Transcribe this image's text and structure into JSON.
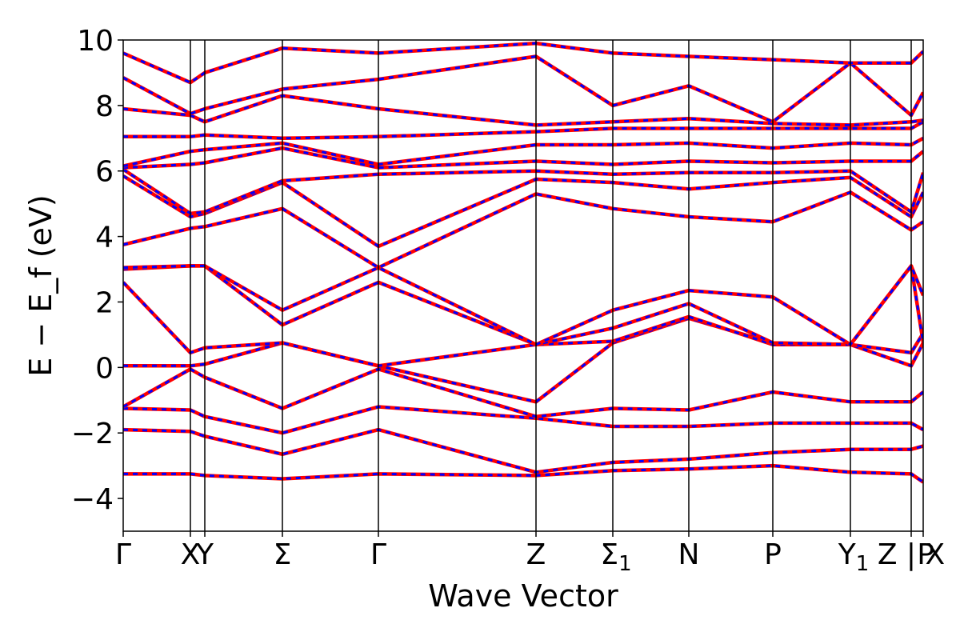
{
  "chart_data": {
    "type": "line",
    "xlabel": "Wave Vector",
    "ylabel": "E − E_f (eV)",
    "ylim": [
      -5,
      10
    ],
    "yticks": [
      -4,
      -2,
      0,
      2,
      4,
      6,
      8,
      10
    ],
    "ytick_labels": [
      "−4",
      "−2",
      "0",
      "2",
      "4",
      "6",
      "8",
      "10"
    ],
    "xlim": [
      0,
      10
    ],
    "kpath": [
      {
        "label": "Γ",
        "x": 0.0
      },
      {
        "label": "X",
        "x": 0.84
      },
      {
        "label": "Y",
        "x": 1.02
      },
      {
        "label": "Σ",
        "x": 1.99
      },
      {
        "label": "Γ",
        "x": 3.19
      },
      {
        "label": "Z",
        "x": 5.16
      },
      {
        "label": "Σ1",
        "x": 6.12
      },
      {
        "label": "N",
        "x": 7.07
      },
      {
        "label": "P",
        "x": 8.12
      },
      {
        "label": "Y1",
        "x": 9.09
      },
      {
        "label": "Z",
        "x": 9.85
      },
      {
        "label": "X",
        "x": 9.85
      },
      {
        "label": "P",
        "x": 10.0
      }
    ],
    "xtick_labels": [
      {
        "x": 0.0,
        "text": "Γ",
        "sub": ""
      },
      {
        "x": 0.84,
        "text": "X",
        "sub": ""
      },
      {
        "x": 1.02,
        "text": "Y",
        "sub": ""
      },
      {
        "x": 1.99,
        "text": "Σ",
        "sub": ""
      },
      {
        "x": 3.19,
        "text": "Γ",
        "sub": ""
      },
      {
        "x": 5.16,
        "text": "Z",
        "sub": ""
      },
      {
        "x": 6.12,
        "text": "Σ",
        "sub": "1"
      },
      {
        "x": 7.07,
        "text": "N",
        "sub": ""
      },
      {
        "x": 8.12,
        "text": "P",
        "sub": ""
      },
      {
        "x": 9.09,
        "text": "Y",
        "sub": "1"
      },
      {
        "x": 9.85,
        "text": "Z | X",
        "sub": ""
      },
      {
        "x": 10.0,
        "text": "P",
        "sub": ""
      }
    ],
    "series": [
      {
        "color": "#ff0000",
        "style": "solid"
      },
      {
        "color": "#0000ff",
        "style": "dashed"
      }
    ],
    "bands": [
      {
        "x": [
          0,
          0.84,
          1.02,
          1.99,
          3.19,
          5.16,
          6.12,
          7.07,
          8.12,
          9.09,
          9.85,
          10.0
        ],
        "y": [
          -3.25,
          -3.25,
          -3.3,
          -3.4,
          -3.25,
          -3.3,
          -3.15,
          -3.1,
          -3.0,
          -3.2,
          -3.25,
          -3.5
        ]
      },
      {
        "x": [
          0,
          0.84,
          1.02,
          1.99,
          3.19,
          5.16,
          6.12,
          7.07,
          8.12,
          9.09,
          9.85,
          10.0
        ],
        "y": [
          -1.9,
          -1.95,
          -2.1,
          -2.65,
          -1.9,
          -3.2,
          -2.9,
          -2.8,
          -2.6,
          -2.5,
          -2.5,
          -2.4
        ]
      },
      {
        "x": [
          0,
          0.84,
          1.02,
          1.99,
          3.19,
          5.16,
          6.12,
          7.07,
          8.12,
          9.09,
          9.85,
          10.0
        ],
        "y": [
          -1.25,
          -1.3,
          -1.5,
          -2.0,
          -1.2,
          -1.55,
          -1.8,
          -1.8,
          -1.7,
          -1.7,
          -1.7,
          -1.9
        ]
      },
      {
        "x": [
          0,
          0.84,
          1.02,
          1.99,
          3.19,
          5.16,
          6.12,
          7.07,
          8.12,
          9.09,
          9.85,
          10.0
        ],
        "y": [
          -1.2,
          -0.05,
          -0.3,
          -1.25,
          -0.05,
          -1.5,
          -1.25,
          -1.3,
          -0.75,
          -1.05,
          -1.05,
          -0.75
        ]
      },
      {
        "x": [
          0,
          0.84,
          1.02,
          1.99,
          3.19,
          5.16,
          6.12,
          7.07,
          8.12,
          9.09,
          9.85,
          10.0
        ],
        "y": [
          0.05,
          0.05,
          0.1,
          0.75,
          0.05,
          -1.05,
          0.75,
          1.5,
          0.75,
          0.7,
          0.05,
          0.75
        ]
      },
      {
        "x": [
          0,
          0.84,
          1.02,
          1.99,
          3.19,
          5.16,
          6.12,
          7.07,
          8.12,
          9.09,
          9.85,
          10.0
        ],
        "y": [
          2.6,
          0.45,
          0.6,
          0.75,
          0.05,
          0.7,
          0.8,
          1.55,
          0.7,
          0.7,
          0.45,
          1.05
        ]
      },
      {
        "x": [
          0,
          0.84,
          1.02,
          1.99,
          3.19,
          5.16,
          6.12,
          7.07,
          8.12,
          9.09,
          9.85,
          10.0
        ],
        "y": [
          3.0,
          3.1,
          3.1,
          1.3,
          2.6,
          0.7,
          1.2,
          1.95,
          0.75,
          0.7,
          3.1,
          0.75
        ]
      },
      {
        "x": [
          0,
          0.84,
          1.02,
          1.99,
          3.19,
          5.16,
          6.12,
          7.07,
          8.12,
          9.09,
          9.85,
          10.0
        ],
        "y": [
          3.05,
          3.1,
          3.1,
          1.75,
          3.05,
          0.7,
          1.75,
          2.35,
          2.15,
          0.7,
          3.1,
          2.2
        ]
      },
      {
        "x": [
          0,
          0.84,
          1.02,
          1.99,
          3.19,
          5.16,
          6.12,
          7.07,
          8.12,
          9.09,
          9.85,
          10.0
        ],
        "y": [
          3.75,
          4.25,
          4.3,
          4.85,
          3.05,
          5.3,
          4.85,
          4.6,
          4.45,
          5.35,
          4.2,
          4.45
        ]
      },
      {
        "x": [
          0,
          0.84,
          1.02,
          1.99,
          3.19,
          5.16,
          6.12,
          7.07,
          8.12,
          9.09,
          9.85,
          10.0
        ],
        "y": [
          5.85,
          4.6,
          4.7,
          5.65,
          3.7,
          5.75,
          5.65,
          5.45,
          5.65,
          5.8,
          4.6,
          5.35
        ]
      },
      {
        "x": [
          0,
          0.84,
          1.02,
          1.99,
          3.19,
          5.16,
          6.12,
          7.07,
          8.12,
          9.09,
          9.85,
          10.0
        ],
        "y": [
          6.05,
          4.7,
          4.75,
          5.7,
          5.9,
          6.0,
          5.9,
          5.95,
          5.95,
          6.0,
          4.75,
          5.95
        ]
      },
      {
        "x": [
          0,
          0.84,
          1.02,
          1.99,
          3.19,
          5.16,
          6.12,
          7.07,
          8.12,
          9.09,
          9.85,
          10.0
        ],
        "y": [
          6.1,
          6.2,
          6.25,
          6.7,
          6.1,
          6.3,
          6.2,
          6.3,
          6.25,
          6.3,
          6.3,
          6.6
        ]
      },
      {
        "x": [
          0,
          0.84,
          1.02,
          1.99,
          3.19,
          5.16,
          6.12,
          7.07,
          8.12,
          9.09,
          9.85,
          10.0
        ],
        "y": [
          6.15,
          6.6,
          6.65,
          6.85,
          6.2,
          6.8,
          6.8,
          6.85,
          6.7,
          6.85,
          6.8,
          7.0
        ]
      },
      {
        "x": [
          0,
          0.84,
          1.02,
          1.99,
          3.19,
          5.16,
          6.12,
          7.07,
          8.12,
          9.09,
          9.85,
          10.0
        ],
        "y": [
          7.05,
          7.05,
          7.1,
          7.0,
          7.05,
          7.2,
          7.3,
          7.3,
          7.3,
          7.3,
          7.3,
          7.5
        ]
      },
      {
        "x": [
          0,
          0.84,
          1.02,
          1.99,
          3.19,
          5.16,
          6.12,
          7.07,
          8.12,
          9.09,
          9.85,
          10.0
        ],
        "y": [
          7.9,
          7.7,
          7.5,
          8.3,
          7.9,
          7.4,
          7.5,
          7.6,
          7.45,
          7.4,
          7.5,
          7.55
        ]
      },
      {
        "x": [
          0,
          0.84,
          1.02,
          1.99,
          3.19,
          5.16,
          6.12,
          7.07,
          8.12,
          9.09,
          9.85,
          10.0
        ],
        "y": [
          8.85,
          7.75,
          7.9,
          8.5,
          8.8,
          9.5,
          8.0,
          8.6,
          7.5,
          9.3,
          7.7,
          8.4
        ]
      },
      {
        "x": [
          0,
          0.84,
          1.02,
          1.99,
          3.19,
          5.16,
          6.12,
          7.07,
          8.12,
          9.09,
          9.85,
          10.0
        ],
        "y": [
          9.6,
          8.7,
          9.0,
          9.75,
          9.6,
          9.9,
          9.6,
          9.5,
          9.4,
          9.3,
          9.3,
          9.65
        ]
      }
    ]
  }
}
